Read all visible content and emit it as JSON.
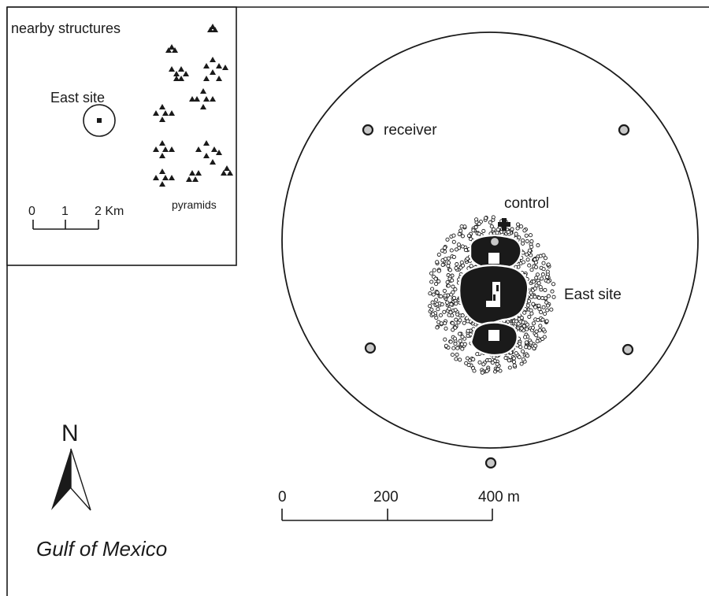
{
  "inset": {
    "title": "nearby structures",
    "site_label": "East site",
    "pyramids_label": "pyramids",
    "scale": {
      "ticks": [
        "0",
        "1",
        "2 Km"
      ]
    }
  },
  "main": {
    "receiver_label": "receiver",
    "control_label": "control",
    "site_label": "East site",
    "scale": {
      "ticks": [
        "0",
        "200",
        "400 m"
      ]
    },
    "north_label": "N",
    "water_label": "Gulf of Mexico"
  },
  "colors": {
    "ink": "#1a1a1a",
    "receiver_fill": "#c8c8c8",
    "structure_fill": "#ffffff"
  },
  "icons": {
    "receiver": "receiver-station-icon",
    "control": "control-cross-icon",
    "north": "north-arrow-icon",
    "pyramid": "pyramid-triangle-icon"
  }
}
